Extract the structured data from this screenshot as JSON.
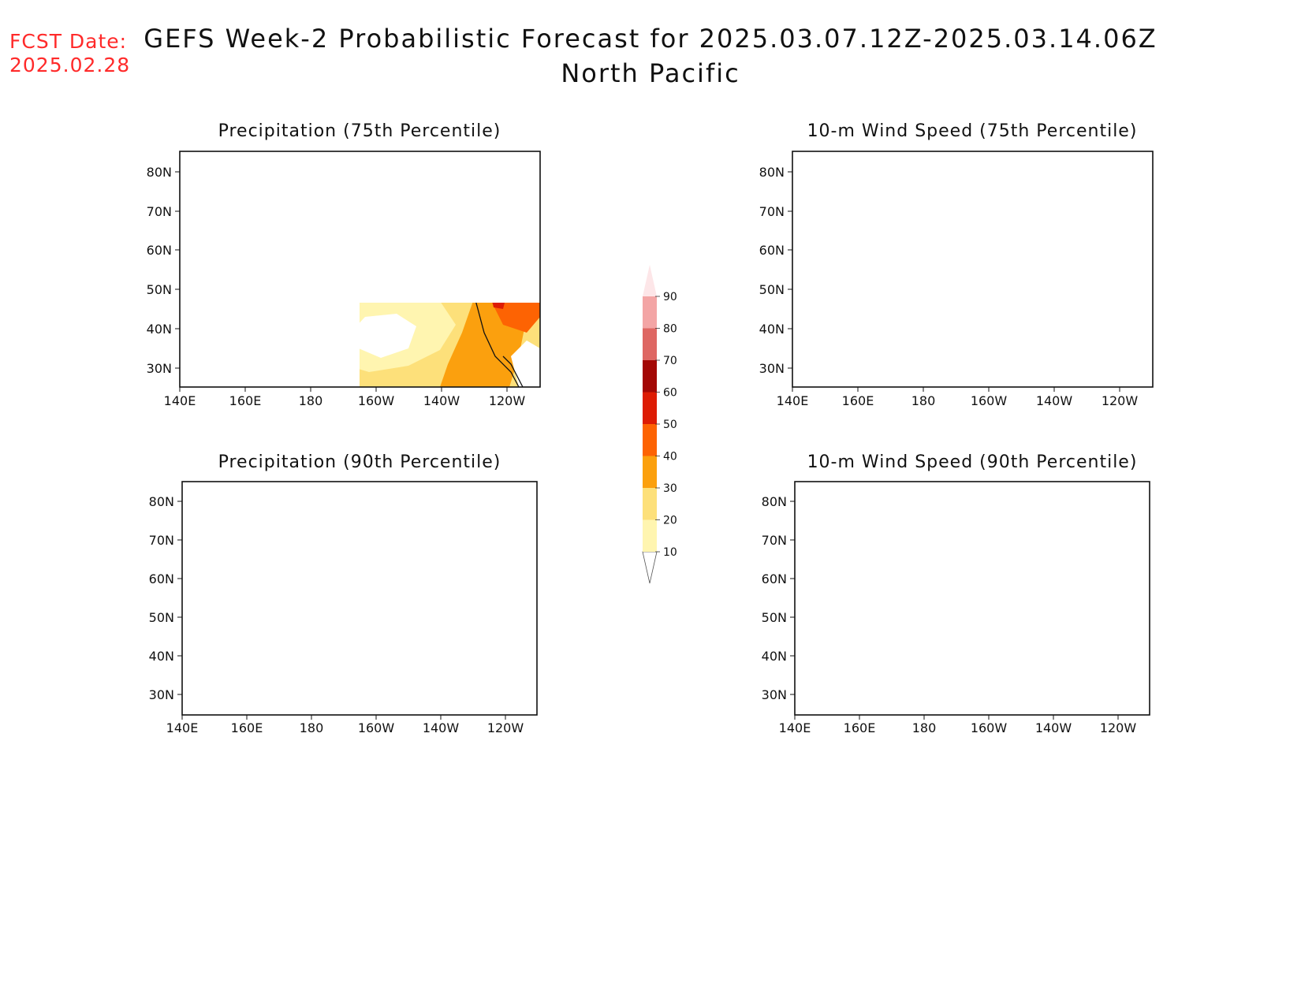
{
  "fcst": {
    "label": "FCST Date:",
    "date": "2025.02.28"
  },
  "title": {
    "line1": "GEFS Week-2 Probabilistic Forecast for 2025.03.07.12Z-2025.03.14.06Z",
    "line2": "North Pacific"
  },
  "colorbar": {
    "levels": [
      "10",
      "20",
      "30",
      "40",
      "50",
      "60",
      "70",
      "80",
      "90"
    ],
    "colors": [
      "#ffffff",
      "#fff5b0",
      "#fde07a",
      "#fba00e",
      "#fd6303",
      "#dd1c04",
      "#a30805",
      "#de6763",
      "#f3a5a5",
      "#fde6e8"
    ]
  },
  "axes": {
    "lat_ticks": [
      "80N",
      "70N",
      "60N",
      "50N",
      "40N",
      "30N"
    ],
    "lon_ticks": [
      "140E",
      "160E",
      "180",
      "160W",
      "140W",
      "120W"
    ]
  },
  "panels": [
    {
      "id": "precip-75",
      "title": "Precipitation (75th Percentile)"
    },
    {
      "id": "wind-75",
      "title": "10-m Wind Speed (75th Percentile)"
    },
    {
      "id": "precip-90",
      "title": "Precipitation (90th Percentile)"
    },
    {
      "id": "wind-90",
      "title": "10-m Wind Speed (90th Percentile)"
    }
  ]
}
